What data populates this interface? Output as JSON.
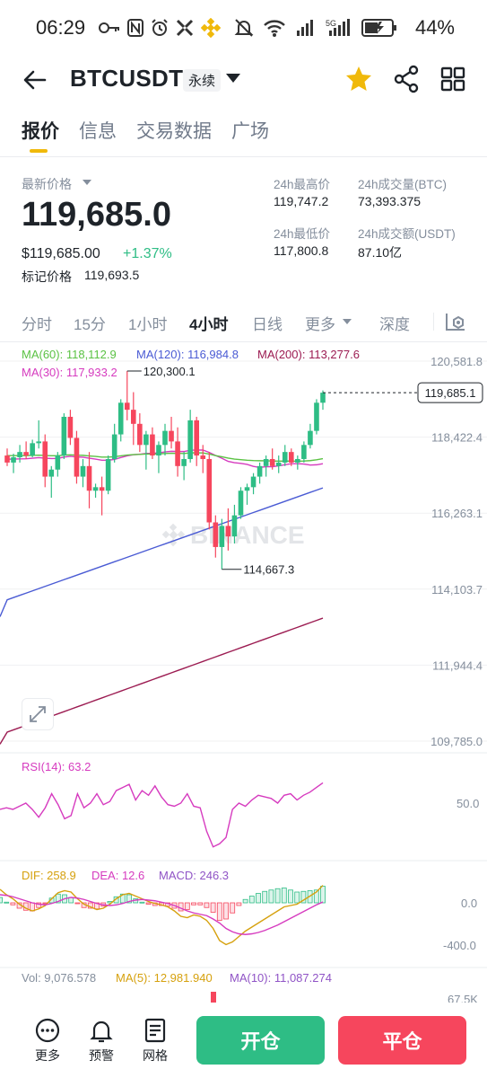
{
  "status_bar": {
    "time": "06:29",
    "battery": "44%",
    "left_icons": [
      "key-icon",
      "nfc-icon",
      "alarm-icon",
      "app-icon",
      "binance-icon"
    ],
    "right_icons": [
      "mute-icon",
      "wifi-icon",
      "signal-r-icon",
      "signal-5g-icon",
      "battery-icon"
    ]
  },
  "header": {
    "symbol": "BTCUSDT",
    "contract_type": "永续",
    "favorite_color": "#f0b90b"
  },
  "tabs": [
    {
      "label": "报价",
      "active": true
    },
    {
      "label": "信息",
      "active": false
    },
    {
      "label": "交易数据",
      "active": false
    },
    {
      "label": "广场",
      "active": false
    }
  ],
  "price": {
    "latest_label": "最新价格",
    "last_price": "119,685.0",
    "usd_price": "$119,685.00",
    "change_pct": "+1.37%",
    "mark_label": "标记价格",
    "mark_price": "119,693.5"
  },
  "stats": {
    "high_label": "24h最高价",
    "high": "119,747.2",
    "low_label": "24h最低价",
    "low": "117,800.8",
    "vol_btc_label": "24h成交量(BTC)",
    "vol_btc": "73,393.375",
    "vol_usdt_label": "24h成交额(USDT)",
    "vol_usdt": "87.10亿"
  },
  "intervals": {
    "items": [
      "分时",
      "15分",
      "1小时",
      "4小时",
      "日线",
      "更多",
      "深度"
    ],
    "active": "4小时"
  },
  "chart_data": {
    "type": "candlestick",
    "interval": "4小时",
    "ma_legend": {
      "ma60": "MA(60): 118,112.9",
      "ma120": "MA(120): 116,984.8",
      "ma200": "MA(200): 113,277.6",
      "ma30": "MA(30): 117,933.2"
    },
    "colors": {
      "up": "#2ebd85",
      "down": "#f6465d",
      "ma30": "#d63bbf",
      "ma60": "#5bc244",
      "ma120": "#4a5bd4",
      "ma200": "#9c1c52"
    },
    "y_ticks": [
      "120,581.8",
      "118,422.4",
      "116,263.1",
      "114,103.7",
      "111,944.4",
      "109,785.0"
    ],
    "y_tick_values": [
      120581.8,
      118422.4,
      116263.1,
      114103.7,
      111944.4,
      109785.0
    ],
    "annotations": {
      "high": "120,300.1",
      "low": "114,667.3",
      "last_price": "119,685.1"
    },
    "candles": [
      [
        117900,
        118100,
        117600,
        117700
      ],
      [
        117700,
        117950,
        117400,
        117850
      ],
      [
        117850,
        118200,
        117700,
        118000
      ],
      [
        118000,
        118300,
        117800,
        117900
      ],
      [
        117900,
        118350,
        117850,
        118250
      ],
      [
        118250,
        118900,
        118100,
        118300
      ],
      [
        118300,
        118500,
        117000,
        117300
      ],
      [
        117300,
        117600,
        116700,
        117500
      ],
      [
        117500,
        118000,
        117300,
        117900
      ],
      [
        117900,
        119100,
        117800,
        119000
      ],
      [
        119000,
        119200,
        118200,
        118400
      ],
      [
        118400,
        118600,
        117100,
        117300
      ],
      [
        117300,
        117800,
        117000,
        117600
      ],
      [
        117600,
        118000,
        116400,
        116900
      ],
      [
        116900,
        117100,
        116700,
        117000
      ],
      [
        117000,
        117300,
        116200,
        116900
      ],
      [
        116900,
        117900,
        116800,
        117800
      ],
      [
        117800,
        118800,
        117700,
        118500
      ],
      [
        118500,
        119500,
        118300,
        119400
      ],
      [
        119400,
        120300,
        118900,
        119200
      ],
      [
        119200,
        119700,
        118200,
        118800
      ],
      [
        118800,
        119100,
        118000,
        118200
      ],
      [
        118200,
        118600,
        117500,
        118500
      ],
      [
        118500,
        118700,
        117800,
        117900
      ],
      [
        117900,
        118300,
        117400,
        118200
      ],
      [
        118200,
        118800,
        117900,
        118600
      ],
      [
        118600,
        119000,
        118100,
        118300
      ],
      [
        118300,
        118700,
        117300,
        117600
      ],
      [
        117600,
        118000,
        117200,
        117800
      ],
      [
        117800,
        119200,
        117700,
        118900
      ],
      [
        118900,
        119000,
        117600,
        117900
      ],
      [
        117900,
        118200,
        117400,
        117800
      ],
      [
        117800,
        118000,
        115800,
        116000
      ],
      [
        116000,
        116200,
        115000,
        115300
      ],
      [
        115300,
        116100,
        114667,
        115900
      ],
      [
        115900,
        116400,
        115200,
        115600
      ],
      [
        115600,
        116500,
        115400,
        116200
      ],
      [
        116200,
        117000,
        116100,
        116900
      ],
      [
        116900,
        117100,
        116500,
        117000
      ],
      [
        117000,
        117400,
        116800,
        117300
      ],
      [
        117300,
        117700,
        117100,
        117600
      ],
      [
        117600,
        117900,
        117300,
        117800
      ],
      [
        117800,
        118100,
        117500,
        117600
      ],
      [
        117600,
        117900,
        117400,
        117700
      ],
      [
        117700,
        118200,
        117600,
        118000
      ],
      [
        118000,
        118100,
        117600,
        117700
      ],
      [
        117700,
        117900,
        117500,
        117800
      ],
      [
        117800,
        118300,
        117700,
        118200
      ],
      [
        118200,
        118800,
        118100,
        118600
      ],
      [
        118600,
        119500,
        118500,
        119400
      ],
      [
        119400,
        119750,
        119200,
        119685
      ]
    ],
    "rsi": {
      "label": "RSI(14): 63.2",
      "tick": "50.0",
      "values": [
        46,
        47,
        46,
        48,
        50,
        46,
        41,
        47,
        56,
        49,
        40,
        42,
        56,
        47,
        50,
        56,
        49,
        51,
        58,
        60,
        62,
        52,
        58,
        55,
        61,
        54,
        49,
        48,
        50,
        56,
        48,
        47,
        32,
        22,
        24,
        28,
        46,
        50,
        48,
        52,
        55,
        54,
        53,
        50,
        55,
        56,
        52,
        55,
        57,
        60,
        63
      ]
    },
    "macd": {
      "dif_label": "DIF: 258.9",
      "dea_label": "DEA: 12.6",
      "macd_label": "MACD: 246.3",
      "ticks": [
        "0.0",
        "-400.0"
      ],
      "dif": [
        200,
        120,
        60,
        -20,
        -80,
        -120,
        -90,
        -40,
        60,
        150,
        180,
        160,
        60,
        -20,
        -60,
        -100,
        -80,
        -20,
        60,
        120,
        140,
        100,
        60,
        20,
        -10,
        -30,
        -60,
        -120,
        -200,
        -220,
        -180,
        -200,
        -260,
        -380,
        -560,
        -620,
        -580,
        -500,
        -420,
        -360,
        -300,
        -240,
        -180,
        -120,
        -60,
        -40,
        -20,
        40,
        100,
        160,
        259
      ],
      "dea": [
        120,
        110,
        90,
        60,
        30,
        0,
        -20,
        -30,
        -10,
        20,
        60,
        80,
        70,
        50,
        20,
        -10,
        -30,
        -40,
        -30,
        -10,
        20,
        40,
        50,
        40,
        30,
        10,
        -10,
        -40,
        -80,
        -120,
        -150,
        -170,
        -190,
        -240,
        -300,
        -380,
        -430,
        -460,
        -470,
        -460,
        -440,
        -410,
        -370,
        -330,
        -280,
        -230,
        -180,
        -130,
        -80,
        -30,
        12.6
      ],
      "hist": [
        80,
        10,
        -30,
        -80,
        -110,
        -120,
        -70,
        -10,
        70,
        130,
        120,
        80,
        -10,
        -70,
        -80,
        -90,
        -50,
        20,
        90,
        130,
        120,
        60,
        10,
        -20,
        -40,
        -40,
        -50,
        -80,
        -120,
        -100,
        -30,
        -30,
        -70,
        -140,
        -260,
        -240,
        -150,
        -40,
        50,
        100,
        140,
        170,
        190,
        210,
        220,
        190,
        160,
        170,
        180,
        190,
        246
      ]
    },
    "volume": {
      "vol_label": "Vol: 9,076.578",
      "ma5_label": "MA(5): 12,981.940",
      "ma10_label": "MA(10): 11,087.274",
      "tick": "67.5K"
    },
    "watermark": "BINANCE"
  },
  "bottom_bar": {
    "more": "更多",
    "alert": "预警",
    "grid": "网格",
    "open": "开仓",
    "close": "平仓"
  }
}
